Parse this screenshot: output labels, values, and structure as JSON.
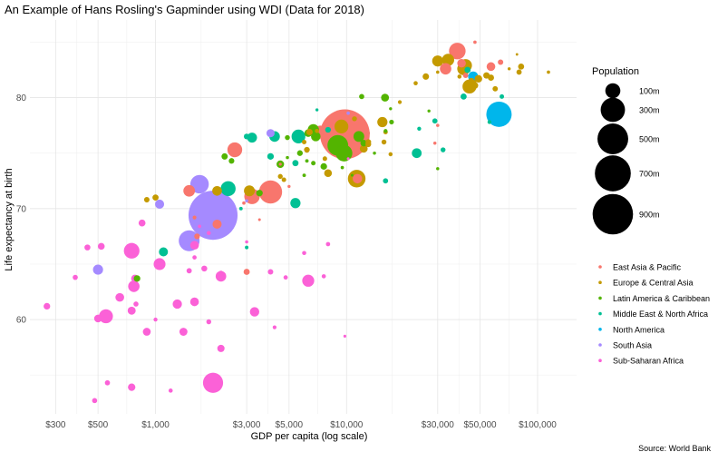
{
  "chart_data": {
    "type": "scatter",
    "title": "An Example of Hans Rosling's Gapminder using WDI (Data for 2018)",
    "xlabel": "GDP per capita (log scale)",
    "ylabel": "Life expectancy at birth",
    "caption": "Source: World Bank",
    "x_scale": "log",
    "xlim": [
      220,
      160000
    ],
    "ylim": [
      51.5,
      87
    ],
    "grid": true,
    "x_ticks": [
      {
        "value": 300,
        "label": "$300"
      },
      {
        "value": 500,
        "label": "$500"
      },
      {
        "value": 1000,
        "label": "$1,000"
      },
      {
        "value": 3000,
        "label": "$3,000"
      },
      {
        "value": 5000,
        "label": "$5,000"
      },
      {
        "value": 10000,
        "label": "$10,000"
      },
      {
        "value": 30000,
        "label": "$30,000"
      },
      {
        "value": 50000,
        "label": "$50,000"
      },
      {
        "value": 100000,
        "label": "$100,000"
      }
    ],
    "y_ticks": [
      {
        "value": 60,
        "label": "60"
      },
      {
        "value": 70,
        "label": "70"
      },
      {
        "value": 80,
        "label": "80"
      }
    ],
    "size_legend": {
      "title": "Population",
      "entries": [
        {
          "value": 100,
          "label": "100m"
        },
        {
          "value": 300,
          "label": "300m"
        },
        {
          "value": 500,
          "label": "500m"
        },
        {
          "value": 700,
          "label": "700m"
        },
        {
          "value": 900,
          "label": "900m"
        }
      ]
    },
    "legend_position": "right",
    "series": [
      {
        "name": "East Asia & Pacific",
        "color": "#F8766D",
        "points": [
          [
            9800,
            76.7,
            1393
          ],
          [
            4000,
            71.5,
            268
          ],
          [
            3200,
            71.1,
            107
          ],
          [
            2600,
            75.3,
            96
          ],
          [
            11400,
            72.7,
            32
          ],
          [
            38000,
            84.2,
            126
          ],
          [
            33000,
            82.6,
            51
          ],
          [
            40000,
            83.1,
            24
          ],
          [
            57000,
            82.8,
            25
          ],
          [
            64000,
            83.2,
            6
          ],
          [
            1500,
            71.6,
            53
          ],
          [
            2100,
            68.6,
            28
          ],
          [
            7300,
            76.9,
            69
          ],
          [
            1650,
            67.5,
            7
          ],
          [
            3000,
            64.3,
            9
          ],
          [
            2900,
            70.5,
            0.6
          ],
          [
            42000,
            82.0,
            5
          ],
          [
            47000,
            85.0,
            0.6
          ],
          [
            13000,
            76.8,
            0.5
          ],
          [
            5000,
            72.0,
            0.3
          ],
          [
            4500,
            74.0,
            0.2
          ],
          [
            3500,
            69.0,
            0.1
          ],
          [
            1600,
            69.2,
            1.3
          ],
          [
            29000,
            75.9,
            0.4
          ],
          [
            30000,
            77.5,
            0.5
          ]
        ]
      },
      {
        "name": "Europe & Central Asia",
        "color": "#C49A00",
        "points": [
          [
            44000,
            81.0,
            83
          ],
          [
            41000,
            82.6,
            67
          ],
          [
            42000,
            82.9,
            66
          ],
          [
            34000,
            83.4,
            60
          ],
          [
            30000,
            83.3,
            47
          ],
          [
            11300,
            72.7,
            145
          ],
          [
            9400,
            77.4,
            82
          ],
          [
            3100,
            71.6,
            45
          ],
          [
            15400,
            77.8,
            38
          ],
          [
            12300,
            75.4,
            19
          ],
          [
            6200,
            75.3,
            7
          ],
          [
            4700,
            72.6,
            3
          ],
          [
            1000,
            71.0,
            9
          ],
          [
            900,
            70.8,
            6
          ],
          [
            2100,
            71.6,
            33
          ],
          [
            8000,
            73.2,
            18
          ],
          [
            4500,
            72.9,
            4
          ],
          [
            6400,
            76.9,
            10
          ],
          [
            7700,
            74.5,
            3
          ],
          [
            57000,
            81.8,
            9
          ],
          [
            54000,
            82.0,
            10
          ],
          [
            49000,
            81.7,
            17
          ],
          [
            47000,
            81.1,
            11
          ],
          [
            45000,
            81.5,
            9
          ],
          [
            46000,
            81.3,
            11.5
          ],
          [
            60000,
            80.8,
            5.5
          ],
          [
            82000,
            82.8,
            8.5
          ],
          [
            80000,
            82.3,
            5.3
          ],
          [
            114000,
            82.3,
            0.6
          ],
          [
            71000,
            82.6,
            0.36
          ],
          [
            78000,
            83.9,
            0.03
          ],
          [
            39000,
            81.9,
            1.9
          ],
          [
            30000,
            82.3,
            0.5
          ],
          [
            26000,
            81.9,
            10.3
          ],
          [
            23000,
            81.3,
            2.1
          ],
          [
            19000,
            79.6,
            1.3
          ],
          [
            16000,
            76.9,
            2.8
          ],
          [
            17000,
            74.9,
            1.9
          ],
          [
            15700,
            76.0,
            4.1
          ],
          [
            13000,
            76.0,
            6.7
          ],
          [
            11000,
            78.1,
            4.1
          ],
          [
            15400,
            77.7,
            2.8
          ],
          [
            6000,
            76.0,
            2.9
          ],
          [
            13000,
            75.8,
            7
          ],
          [
            7000,
            77.0,
            2.1
          ]
        ]
      },
      {
        "name": "Latin America & Caribbean",
        "color": "#53B400",
        "points": [
          [
            9000,
            75.7,
            209
          ],
          [
            9700,
            75.0,
            126
          ],
          [
            11600,
            76.5,
            44
          ],
          [
            6700,
            77.1,
            50
          ],
          [
            6900,
            76.5,
            32
          ],
          [
            15900,
            80.0,
            19
          ],
          [
            6300,
            76.8,
            17
          ],
          [
            7600,
            73.8,
            11
          ],
          [
            4500,
            74.0,
            17
          ],
          [
            3500,
            71.4,
            11
          ],
          [
            4900,
            76.4,
            4.2
          ],
          [
            5700,
            75.0,
            7
          ],
          [
            2500,
            74.3,
            6.5
          ],
          [
            2300,
            74.7,
            9.6
          ],
          [
            12000,
            80.1,
            4.9
          ],
          [
            17200,
            77.8,
            3.4
          ],
          [
            6700,
            74.1,
            2.9
          ],
          [
            12300,
            75.9,
            11.3
          ],
          [
            800,
            63.7,
            11.1
          ],
          [
            16000,
            77.0,
            1.4
          ],
          [
            9500,
            73.7,
            0.6
          ],
          [
            6200,
            74.3,
            0.8
          ],
          [
            4900,
            74.6,
            0.4
          ],
          [
            6000,
            73.0,
            0.8
          ],
          [
            27000,
            78.8,
            0.3
          ],
          [
            17000,
            79.0,
            0.3
          ],
          [
            30000,
            73.6,
            0.4
          ],
          [
            14000,
            75.0,
            0.4
          ],
          [
            10700,
            73.0,
            0.1
          ]
        ]
      },
      {
        "name": "Middle East & North Africa",
        "color": "#00C094",
        "points": [
          [
            2400,
            71.8,
            98
          ],
          [
            5600,
            76.5,
            81
          ],
          [
            4200,
            76.5,
            42
          ],
          [
            5400,
            70.5,
            38
          ],
          [
            3200,
            76.4,
            36
          ],
          [
            23300,
            75.0,
            34
          ],
          [
            4000,
            74.7,
            11
          ],
          [
            8000,
            77.1,
            7
          ],
          [
            3000,
            76.5,
            6.8
          ],
          [
            5400,
            74.1,
            9
          ],
          [
            1100,
            66.1,
            28
          ],
          [
            41000,
            80.1,
            9
          ],
          [
            43000,
            82.5,
            9
          ],
          [
            65000,
            80.1,
            2.8
          ],
          [
            32000,
            75.3,
            4.1
          ],
          [
            29000,
            77.9,
            4.8
          ],
          [
            56000,
            77.8,
            1.6
          ],
          [
            24000,
            77.2,
            1.6
          ],
          [
            16000,
            72.5,
            4.9
          ],
          [
            3000,
            66.5,
            0.9
          ],
          [
            7000,
            78.9,
            0.3
          ],
          [
            2800,
            70.0,
            0.8
          ]
        ]
      },
      {
        "name": "North America",
        "color": "#00B6EB",
        "points": [
          [
            62800,
            78.5,
            327
          ],
          [
            46000,
            81.9,
            37
          ]
        ]
      },
      {
        "name": "South Asia",
        "color": "#A58AFF",
        "points": [
          [
            2000,
            69.4,
            1353
          ],
          [
            1700,
            72.2,
            161
          ],
          [
            1500,
            67.1,
            212
          ],
          [
            1050,
            70.4,
            28
          ],
          [
            500,
            64.5,
            37
          ],
          [
            3000,
            70.7,
            0.4
          ],
          [
            4000,
            76.8,
            21
          ],
          [
            10200,
            78.6,
            0.5
          ]
        ]
      },
      {
        "name": "Sub-Saharan Africa",
        "color": "#FB61D7",
        "points": [
          [
            2000,
            54.3,
            196
          ],
          [
            750,
            66.2,
            109
          ],
          [
            550,
            60.3,
            84
          ],
          [
            1050,
            65.0,
            56
          ],
          [
            770,
            63.0,
            51
          ],
          [
            2200,
            63.9,
            42
          ],
          [
            6300,
            63.5,
            58
          ],
          [
            650,
            62.0,
            25
          ],
          [
            1600,
            61.6,
            25
          ],
          [
            3300,
            60.7,
            31
          ],
          [
            1300,
            61.4,
            30
          ],
          [
            900,
            58.9,
            19
          ],
          [
            780,
            63.7,
            17
          ],
          [
            750,
            60.8,
            20
          ],
          [
            500,
            60.1,
            18
          ],
          [
            1400,
            58.9,
            20
          ],
          [
            2200,
            57.4,
            15
          ],
          [
            1600,
            66.7,
            25
          ],
          [
            4000,
            64.3,
            6
          ],
          [
            6000,
            66.0,
            2
          ],
          [
            8000,
            66.8,
            2.3
          ],
          [
            7600,
            63.9,
            2.2
          ],
          [
            2200,
            64.2,
            2.8
          ],
          [
            520,
            66.6,
            12.3
          ],
          [
            440,
            66.5,
            8
          ],
          [
            270,
            61.2,
            11.2
          ],
          [
            380,
            63.8,
            4.7
          ],
          [
            850,
            68.7,
            13
          ],
          [
            790,
            61.4,
            4.5
          ],
          [
            560,
            54.3,
            4.8
          ],
          [
            480,
            52.7,
            4.7
          ],
          [
            1800,
            64.6,
            8
          ],
          [
            1200,
            53.6,
            2.1
          ],
          [
            750,
            53.9,
            16
          ],
          [
            1900,
            59.8,
            4.1
          ],
          [
            1500,
            64.4,
            5.2
          ],
          [
            1600,
            65.6,
            2.2
          ],
          [
            1900,
            67.8,
            1.9
          ],
          [
            9800,
            58.5,
            0.2
          ],
          [
            4200,
            59.3,
            1.3
          ],
          [
            1700,
            68.4,
            0.6
          ],
          [
            10200,
            74.5,
            0.1
          ],
          [
            3000,
            67.0,
            0.5
          ],
          [
            4800,
            63.8,
            2.4
          ],
          [
            1000,
            60.0,
            1.5
          ]
        ]
      }
    ]
  }
}
